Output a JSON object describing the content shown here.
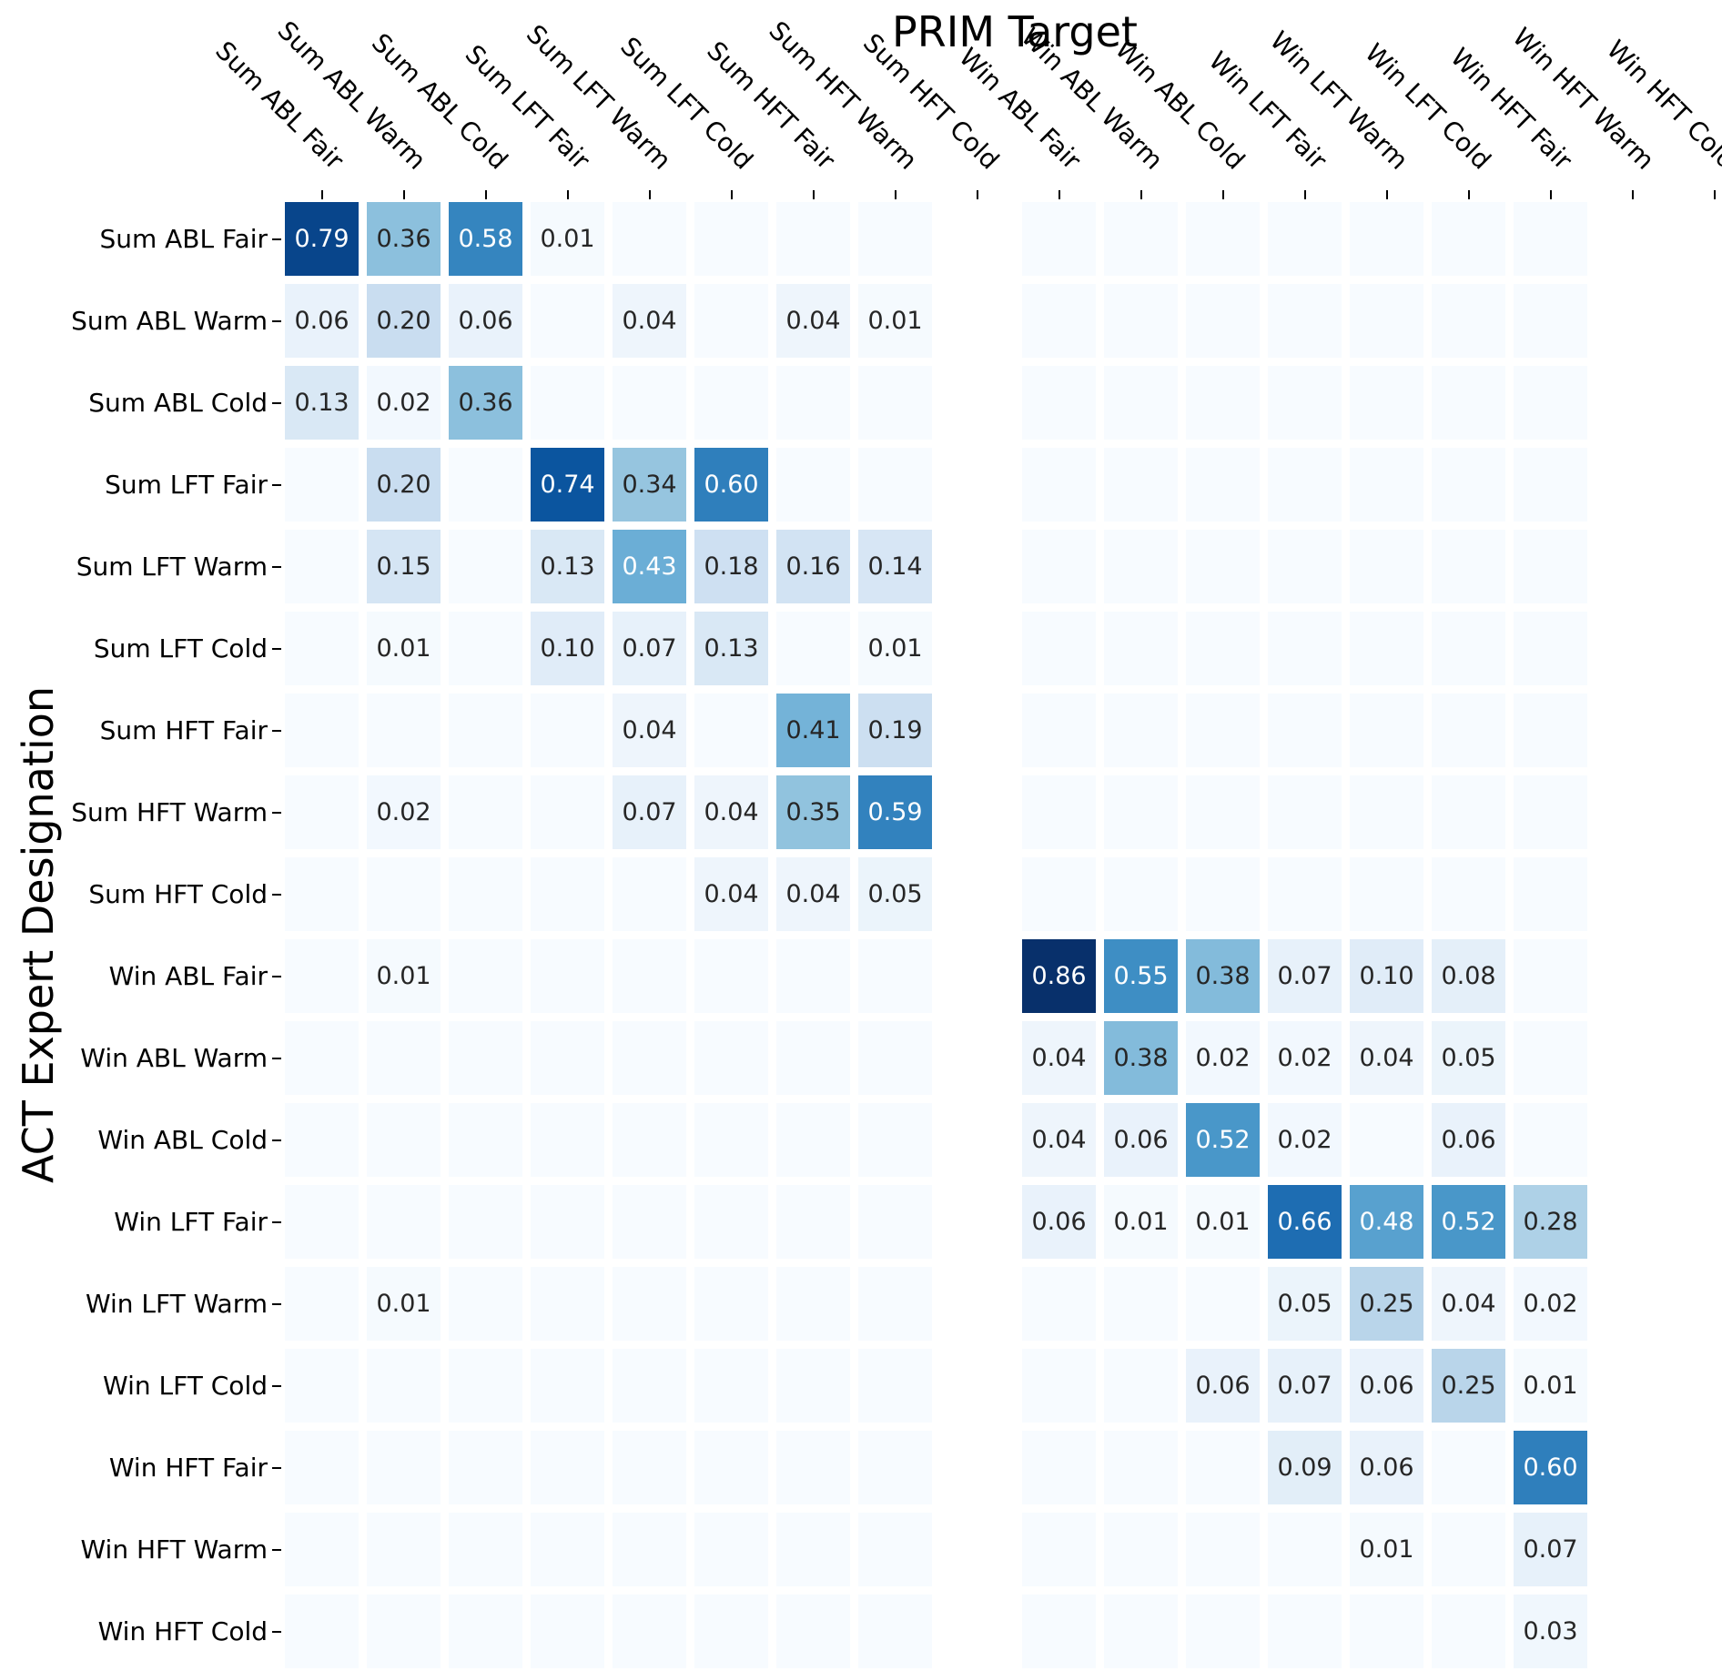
{
  "figure": {
    "title": "PRIM Target",
    "ylabel": "ACT Expert Designation"
  },
  "chart_data": {
    "type": "heatmap",
    "title": "PRIM Target",
    "xlabel": "PRIM Target",
    "ylabel": "ACT Expert Designation",
    "colormap": "Blues",
    "colormap_stops": [
      "#f7fbff",
      "#deebf7",
      "#c6dbef",
      "#9ecae1",
      "#6baed6",
      "#4292c6",
      "#2171b5",
      "#08519c",
      "#08306b"
    ],
    "vmin": 0,
    "vmax": 0.86,
    "grid_gap_color": "#ffffff",
    "masked_cell_color": "#ffffff",
    "annotation_format": ".2f",
    "annotation_luminance_threshold": 0.408,
    "annotation_text_colors": {
      "light": "#ffffff",
      "dark": "#262626"
    },
    "x_categories": [
      "Sum ABL Fair",
      "Sum ABL Warm",
      "Sum ABL Cold",
      "Sum LFT Fair",
      "Sum LFT Warm",
      "Sum LFT Cold",
      "Sum HFT Fair",
      "Sum HFT Warm",
      "Sum HFT Cold",
      "Win ABL Fair",
      "Win ABL Warm",
      "Win ABL Cold",
      "Win LFT Fair",
      "Win LFT Warm",
      "Win LFT Cold",
      "Win HFT Fair",
      "Win HFT Warm",
      "Win HFT Cold"
    ],
    "y_categories": [
      "Sum ABL Fair",
      "Sum ABL Warm",
      "Sum ABL Cold",
      "Sum LFT Fair",
      "Sum LFT Warm",
      "Sum LFT Cold",
      "Sum HFT Fair",
      "Sum HFT Warm",
      "Sum HFT Cold",
      "Win ABL Fair",
      "Win ABL Warm",
      "Win ABL Cold",
      "Win LFT Fair",
      "Win LFT Warm",
      "Win LFT Cold",
      "Win HFT Fair",
      "Win HFT Warm",
      "Win HFT Cold"
    ],
    "masked_columns": [
      "Sum HFT Cold",
      "Win HFT Warm",
      "Win HFT Cold"
    ],
    "matrix": [
      [
        0.79,
        0.36,
        0.58,
        0.01,
        0,
        0,
        0,
        0,
        null,
        0,
        0,
        0,
        0,
        0,
        0,
        0,
        null,
        null
      ],
      [
        0.06,
        0.2,
        0.06,
        0,
        0.04,
        0,
        0.04,
        0.01,
        null,
        0,
        0,
        0,
        0,
        0,
        0,
        0,
        null,
        null
      ],
      [
        0.13,
        0.02,
        0.36,
        0,
        0,
        0,
        0,
        0,
        null,
        0,
        0,
        0,
        0,
        0,
        0,
        0,
        null,
        null
      ],
      [
        0,
        0.2,
        0,
        0.74,
        0.34,
        0.6,
        0,
        0,
        null,
        0,
        0,
        0,
        0,
        0,
        0,
        0,
        null,
        null
      ],
      [
        0,
        0.15,
        0,
        0.13,
        0.43,
        0.18,
        0.16,
        0.14,
        null,
        0,
        0,
        0,
        0,
        0,
        0,
        0,
        null,
        null
      ],
      [
        0,
        0.01,
        0,
        0.1,
        0.07,
        0.13,
        0,
        0.01,
        null,
        0,
        0,
        0,
        0,
        0,
        0,
        0,
        null,
        null
      ],
      [
        0,
        0,
        0,
        0,
        0.04,
        0,
        0.41,
        0.19,
        null,
        0,
        0,
        0,
        0,
        0,
        0,
        0,
        null,
        null
      ],
      [
        0,
        0.02,
        0,
        0,
        0.07,
        0.04,
        0.35,
        0.59,
        null,
        0,
        0,
        0,
        0,
        0,
        0,
        0,
        null,
        null
      ],
      [
        0,
        0,
        0,
        0,
        0,
        0.04,
        0.04,
        0.05,
        null,
        0,
        0,
        0,
        0,
        0,
        0,
        0,
        null,
        null
      ],
      [
        0,
        0.01,
        0,
        0,
        0,
        0,
        0,
        0,
        null,
        0.86,
        0.55,
        0.38,
        0.07,
        0.1,
        0.08,
        0,
        null,
        null
      ],
      [
        0,
        0,
        0,
        0,
        0,
        0,
        0,
        0,
        null,
        0.04,
        0.38,
        0.02,
        0.02,
        0.04,
        0.05,
        0,
        null,
        null
      ],
      [
        0,
        0,
        0,
        0,
        0,
        0,
        0,
        0,
        null,
        0.04,
        0.06,
        0.52,
        0.02,
        0,
        0.06,
        0,
        null,
        null
      ],
      [
        0,
        0,
        0,
        0,
        0,
        0,
        0,
        0,
        null,
        0.06,
        0.01,
        0.01,
        0.66,
        0.48,
        0.52,
        0.28,
        null,
        null
      ],
      [
        0,
        0.01,
        0,
        0,
        0,
        0,
        0,
        0,
        null,
        0,
        0,
        0,
        0.05,
        0.25,
        0.04,
        0.02,
        null,
        null
      ],
      [
        0,
        0,
        0,
        0,
        0,
        0,
        0,
        0,
        null,
        0,
        0,
        0.06,
        0.07,
        0.06,
        0.25,
        0.01,
        null,
        null
      ],
      [
        0,
        0,
        0,
        0,
        0,
        0,
        0,
        0,
        null,
        0,
        0,
        0,
        0.09,
        0.06,
        0,
        0.6,
        null,
        null
      ],
      [
        0,
        0,
        0,
        0,
        0,
        0,
        0,
        0,
        null,
        0,
        0,
        0,
        0,
        0.01,
        0,
        0.07,
        null,
        null
      ],
      [
        0,
        0,
        0,
        0,
        0,
        0,
        0,
        0,
        null,
        0,
        0,
        0,
        0,
        0,
        0,
        0.03,
        null,
        null
      ]
    ]
  }
}
